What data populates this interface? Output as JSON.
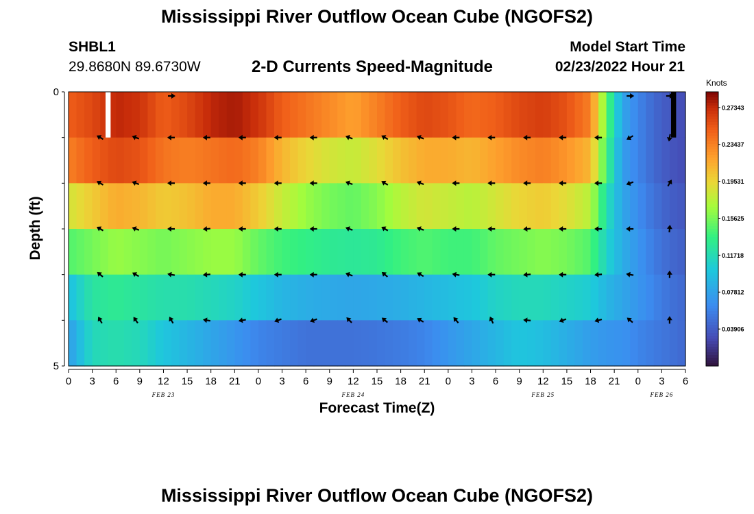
{
  "title": "Mississippi River Outflow Ocean Cube (NGOFS2)",
  "header": {
    "station": "SHBL1",
    "coords": "29.8680N  89.6730W",
    "subtitle": "2-D Currents Speed-Magnitude",
    "model_start_label": "Model Start Time",
    "model_start_value": "02/23/2022 Hour 21"
  },
  "chart_data": {
    "type": "heatmap",
    "xlabel": "Forecast Time(Z)",
    "ylabel": "Depth (ft)",
    "x_tick_labels": [
      "0",
      "3",
      "6",
      "9",
      "12",
      "15",
      "18",
      "21",
      "0",
      "3",
      "6",
      "9",
      "12",
      "15",
      "18",
      "21",
      "0",
      "3",
      "6",
      "9",
      "12",
      "15",
      "18",
      "21",
      "0",
      "3",
      "6"
    ],
    "x_hours": [
      0,
      3,
      6,
      9,
      12,
      15,
      18,
      21,
      24,
      27,
      30,
      33,
      36,
      39,
      42,
      45,
      48,
      51,
      54,
      57,
      60,
      63,
      66,
      69,
      72,
      75,
      78
    ],
    "xlim": [
      0,
      78
    ],
    "date_labels": [
      {
        "text": "FEB 23",
        "hour": 12
      },
      {
        "text": "FEB 24",
        "hour": 36
      },
      {
        "text": "FEB 25",
        "hour": 60
      },
      {
        "text": "FEB 26",
        "hour": 75
      }
    ],
    "y_tick_labels": [
      "0",
      "5"
    ],
    "ylim": [
      0,
      5
    ],
    "depth_layers": [
      0,
      1,
      2,
      3,
      4,
      5
    ],
    "colorbar": {
      "units": "Knots",
      "ticks": [
        "0.27343",
        "0.23437",
        "0.19531",
        "0.15625",
        "0.11718",
        "0.07812",
        "0.03906"
      ],
      "range": [
        0.0,
        0.29
      ]
    },
    "speed_keypoints_hours": [
      0,
      3,
      6,
      9,
      12,
      15,
      18,
      21,
      24,
      27,
      30,
      33,
      36,
      39,
      42,
      45,
      48,
      51,
      54,
      57,
      60,
      63,
      66,
      68,
      70,
      72,
      74,
      76,
      78
    ],
    "speed_knots": [
      [
        0.25,
        0.26,
        0.275,
        0.27,
        0.25,
        0.26,
        0.275,
        0.28,
        0.27,
        0.25,
        0.24,
        0.23,
        0.22,
        0.235,
        0.25,
        0.26,
        0.255,
        0.245,
        0.25,
        0.26,
        0.265,
        0.255,
        0.235,
        0.15,
        0.08,
        0.06,
        0.045,
        0.035,
        0.03
      ],
      [
        0.235,
        0.25,
        0.26,
        0.255,
        0.24,
        0.235,
        0.24,
        0.245,
        0.235,
        0.21,
        0.195,
        0.185,
        0.18,
        0.19,
        0.205,
        0.215,
        0.215,
        0.21,
        0.22,
        0.23,
        0.235,
        0.225,
        0.21,
        0.14,
        0.075,
        0.06,
        0.045,
        0.035,
        0.03
      ],
      [
        0.185,
        0.2,
        0.215,
        0.21,
        0.2,
        0.205,
        0.215,
        0.215,
        0.2,
        0.18,
        0.165,
        0.155,
        0.15,
        0.16,
        0.175,
        0.185,
        0.18,
        0.175,
        0.185,
        0.195,
        0.2,
        0.19,
        0.175,
        0.12,
        0.08,
        0.065,
        0.05,
        0.04,
        0.035
      ],
      [
        0.145,
        0.155,
        0.165,
        0.16,
        0.155,
        0.16,
        0.165,
        0.165,
        0.15,
        0.14,
        0.135,
        0.13,
        0.128,
        0.13,
        0.14,
        0.145,
        0.14,
        0.14,
        0.15,
        0.155,
        0.16,
        0.155,
        0.145,
        0.11,
        0.085,
        0.07,
        0.055,
        0.045,
        0.04
      ],
      [
        0.095,
        0.125,
        0.13,
        0.125,
        0.12,
        0.12,
        0.115,
        0.11,
        0.1,
        0.09,
        0.085,
        0.082,
        0.08,
        0.082,
        0.085,
        0.09,
        0.095,
        0.1,
        0.11,
        0.115,
        0.115,
        0.11,
        0.105,
        0.09,
        0.08,
        0.07,
        0.06,
        0.05,
        0.045
      ],
      [
        0.075,
        0.115,
        0.12,
        0.115,
        0.1,
        0.09,
        0.08,
        0.07,
        0.06,
        0.055,
        0.05,
        0.05,
        0.05,
        0.052,
        0.055,
        0.06,
        0.07,
        0.08,
        0.09,
        0.1,
        0.095,
        0.085,
        0.075,
        0.07,
        0.068,
        0.06,
        0.055,
        0.05,
        0.045
      ]
    ],
    "missing_cells": [
      {
        "hour": 5,
        "layer": 0,
        "color": "#ffffff"
      },
      {
        "hour": 76.5,
        "layer": 0,
        "color": "#000000"
      }
    ],
    "arrow_hours": [
      4,
      8.5,
      13,
      17.5,
      22,
      26.5,
      31,
      35.5,
      40,
      44.5,
      49,
      53.5,
      58,
      62.5,
      67,
      71,
      76
    ],
    "arrow_layers": [
      0,
      1,
      2,
      3,
      4,
      5
    ],
    "arrow_directions_deg": [
      [
        0,
        0,
        0,
        0,
        0,
        0,
        0,
        0,
        0,
        0,
        0,
        0,
        0,
        0,
        0,
        0,
        0
      ],
      [
        150,
        160,
        180,
        180,
        180,
        180,
        180,
        160,
        150,
        160,
        180,
        180,
        180,
        180,
        180,
        210,
        260
      ],
      [
        150,
        160,
        180,
        180,
        180,
        180,
        180,
        160,
        150,
        160,
        180,
        180,
        180,
        180,
        180,
        200,
        60
      ],
      [
        150,
        160,
        180,
        185,
        180,
        180,
        180,
        160,
        150,
        160,
        180,
        180,
        185,
        180,
        180,
        180,
        85
      ],
      [
        140,
        150,
        170,
        185,
        180,
        180,
        180,
        160,
        140,
        150,
        170,
        180,
        185,
        180,
        185,
        170,
        90
      ],
      [
        120,
        125,
        120,
        170,
        190,
        200,
        200,
        135,
        140,
        150,
        130,
        115,
        175,
        200,
        195,
        140,
        90
      ]
    ],
    "arrow_visible_layer0": [
      false,
      false,
      true,
      false,
      false,
      false,
      false,
      false,
      false,
      false,
      false,
      false,
      false,
      false,
      false,
      true,
      true
    ],
    "grid": false
  }
}
